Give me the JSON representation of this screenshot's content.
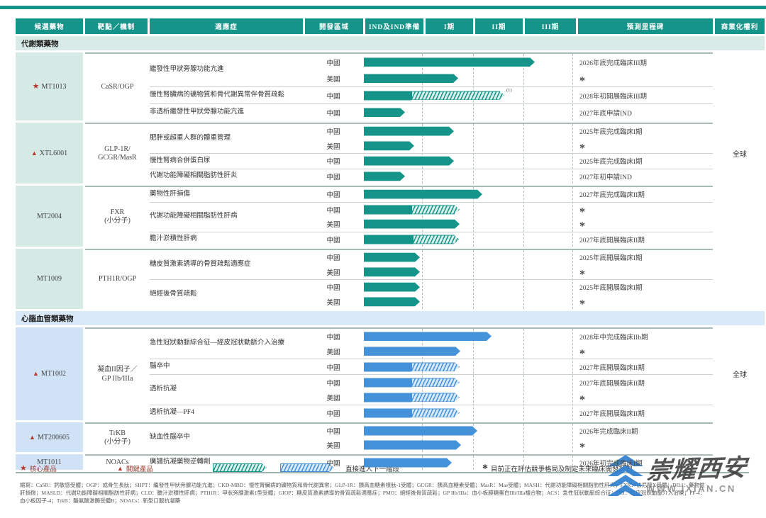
{
  "header": {
    "columns": [
      "候選藥物",
      "靶點／機制",
      "適應症",
      "開發區域",
      "IND及IND準備",
      "I期",
      "II期",
      "III期",
      "預測里程碑",
      "商業化權利"
    ]
  },
  "colors": {
    "teal": "#15948a",
    "blue": "#4493da",
    "teal_cell": "#d5e9e5",
    "blue_cell": "#cfe2f6",
    "band_teal": "#d8ebe7",
    "band_blue": "#d9e9f8",
    "marker_red": "#b5382e"
  },
  "sections": [
    {
      "label": "代謝類藥物",
      "theme": "teal",
      "drugs": [
        {
          "marker": "star",
          "name": "MT1013",
          "target_lines": [
            "CaSR/OGP"
          ],
          "commercial": "",
          "groups": [
            {
              "indication": "繼發性甲狀旁腺功能亢進",
              "rows": [
                {
                  "region": "中國",
                  "bar": {
                    "solid_end": 754
                  },
                  "milestone": "2026年底完成臨床III期"
                },
                {
                  "region": "美國",
                  "bar": {
                    "solid_end": 646
                  },
                  "milestone": "*"
                }
              ]
            },
            {
              "indication": "慢性腎臟病的礦物質和骨代謝異常伴骨質疏鬆",
              "rows": [
                {
                  "region": "中國",
                  "bar": {
                    "solid_end": 580,
                    "hatch_end": 711,
                    "note": "(1)"
                  },
                  "milestone": "2028年初開展臨床III期"
                }
              ]
            },
            {
              "indication": "非透析繼發性甲狀旁腺功能亢進",
              "rows": [
                {
                  "region": "中國",
                  "bar": {
                    "solid_end": 571
                  },
                  "milestone": "2027年底申請IND"
                }
              ]
            }
          ]
        },
        {
          "marker": "triangle",
          "name": "XTL6001",
          "target_lines": [
            "GLP-1R/",
            "GCGR/MasR"
          ],
          "commercial": "全球",
          "groups": [
            {
              "indication": "肥胖或超重人群的體重管理",
              "rows": [
                {
                  "region": "中國",
                  "bar": {
                    "solid_end": 640
                  },
                  "milestone": "2025年底完成臨床I期"
                },
                {
                  "region": "美國",
                  "bar": {
                    "solid_end": 584
                  },
                  "milestone": "*"
                }
              ]
            },
            {
              "indication": "慢性腎病合併蛋白尿",
              "rows": [
                {
                  "region": "中國",
                  "bar": {
                    "solid_end": 640
                  },
                  "milestone": "2025年底完成臨床I期"
                }
              ]
            },
            {
              "indication": "代謝功能障礙相關脂肪性肝炎",
              "rows": [
                {
                  "region": "中國",
                  "bar": {
                    "solid_end": 571
                  },
                  "milestone": "2027年初申請IND"
                }
              ]
            }
          ]
        },
        {
          "marker": null,
          "name": "MT2004",
          "target_lines": [
            "FXR",
            "(小分子)"
          ],
          "commercial": "",
          "groups": [
            {
              "indication": "藥物性肝損傷",
              "rows": [
                {
                  "region": "中國",
                  "bar": {
                    "solid_end": 680
                  },
                  "milestone": "2027年底完成臨床II期"
                }
              ]
            },
            {
              "indication": "代謝功能障礙相關脂肪性肝病",
              "rows": [
                {
                  "region": "中國",
                  "bar": {
                    "solid_end": 580,
                    "hatch_end": 648
                  },
                  "milestone": "*"
                },
                {
                  "region": "美國",
                  "bar": {
                    "solid_end": 648
                  },
                  "milestone": "*"
                }
              ]
            },
            {
              "indication": "膽汁淤積性肝病",
              "rows": [
                {
                  "region": "中國",
                  "bar": {
                    "solid_end": 582,
                    "hatch_end": 647
                  },
                  "milestone": "2027年底開展臨床II期"
                }
              ]
            }
          ]
        },
        {
          "marker": null,
          "name": "MT1009",
          "target_lines": [
            "PTH1R/OGP"
          ],
          "commercial": "",
          "groups": [
            {
              "indication": "糖皮質激素誘導的骨質疏鬆適應症",
              "rows": [
                {
                  "region": "中國",
                  "bar": {
                    "solid_end": 592
                  },
                  "milestone": "2025年底開展臨床I期"
                },
                {
                  "region": "美國",
                  "bar": {
                    "solid_end": 592
                  },
                  "milestone": "*"
                }
              ]
            },
            {
              "indication": "絕經後骨質疏鬆",
              "rows": [
                {
                  "region": "中國",
                  "bar": {
                    "solid_end": 592
                  },
                  "milestone": "2025年底開展臨床I期"
                },
                {
                  "region": "美國",
                  "bar": {
                    "solid_end": 592
                  },
                  "milestone": "*"
                }
              ]
            }
          ]
        }
      ]
    },
    {
      "label": "心腦血管類藥物",
      "theme": "blue",
      "drugs": [
        {
          "marker": "triangle",
          "name": "MT1002",
          "target_lines": [
            "凝血II因子／",
            "GP IIb/IIIa"
          ],
          "commercial": "全球",
          "groups": [
            {
              "indication": "急性冠狀動脈綜合征—經皮冠狀動脈介入治療",
              "rows": [
                {
                  "region": "中國",
                  "bar": {
                    "solid_end": 693
                  },
                  "milestone": "2028年中完成臨床IIb期"
                },
                {
                  "region": "美國",
                  "bar": {
                    "solid_end": 649
                  },
                  "milestone": "*"
                }
              ]
            },
            {
              "indication": "腦卒中",
              "rows": [
                {
                  "region": "中國",
                  "bar": {
                    "solid_end": 580,
                    "hatch_end": 648
                  },
                  "milestone": "2027年底開展臨床II期"
                }
              ]
            },
            {
              "indication": "透析抗凝",
              "rows": [
                {
                  "region": "中國",
                  "bar": {
                    "solid_end": 580,
                    "hatch_end": 648
                  },
                  "milestone": "2027年底開展臨床II期"
                },
                {
                  "region": "美國",
                  "bar": {
                    "solid_end": 580,
                    "hatch_end": 648
                  },
                  "milestone": "*"
                }
              ]
            },
            {
              "indication": "透析抗凝—PF4",
              "rows": [
                {
                  "region": "中國",
                  "bar": {
                    "solid_end": 580,
                    "hatch_end": 648
                  },
                  "milestone": "2027年底開展臨床II期"
                }
              ]
            }
          ]
        },
        {
          "marker": "triangle",
          "name": "MT200605",
          "target_lines": [
            "TrKB",
            "(小分子)"
          ],
          "commercial": "",
          "groups": [
            {
              "indication": "缺血性腦卒中",
              "rows": [
                {
                  "region": "中國",
                  "bar": {
                    "solid_end": 673
                  },
                  "milestone": "2026年完成臨床II期"
                },
                {
                  "region": "美國",
                  "bar": {
                    "solid_end": 650
                  },
                  "milestone": "*"
                }
              ]
            }
          ]
        },
        {
          "marker": null,
          "name": "MT1011",
          "target_lines": [
            "NOACs"
          ],
          "commercial": "",
          "groups": [
            {
              "indication": "廣譜抗凝藥物逆轉劑",
              "rows": [
                {
                  "region": "中國",
                  "bar": {
                    "solid_end": 637
                  },
                  "milestone": "2026年初完成臨床I期"
                }
              ]
            }
          ]
        }
      ]
    }
  ],
  "legend": {
    "core_label": "核心產品",
    "key_label": "關鍵產品",
    "next_phase_label": "直接進入下一階段",
    "asterisk_note": "目前正在評估競爭格局及制定未來臨床開發計劃"
  },
  "footnotes": [
    "縮寫：CaSR：鈣敏感受體；OGP：成骨生長肽；SHPT：繼發性甲狀旁腺功能亢進；CKD-MBD：慢性腎臟病的礦物質和骨代謝異常；GLP-1R：胰高血糖素樣肽-1受體；GCGR：胰高血糖素受體；MasR：Mas受體；MASH：代謝功能障礙相關脂肪性肝炎；FXR：法尼醇X受體；DILI：藥物性",
    "肝損傷；MASLD：代謝功能障礙相關脂肪性肝病；CLD：膽汁淤積性肝病；PTH1R：甲狀旁腺激素1型受體；GIOP：糖皮質激素誘導的骨質疏鬆適應症；PMO：絕經後骨質疏鬆；GP IIb/IIIa：血小板膜糖蛋白IIb/IIIa複合物；ACS：急性冠狀動脈綜合征；PCI：經皮冠狀動脈介入治療；PF-4：",
    "血小板因子-4；TrkB：酪氨酸激酶受體B；NOACs：新型口服抗凝藥"
  ],
  "watermark": {
    "brand": "崇耀西安",
    "url": "WWW.IXIAN.CN"
  }
}
